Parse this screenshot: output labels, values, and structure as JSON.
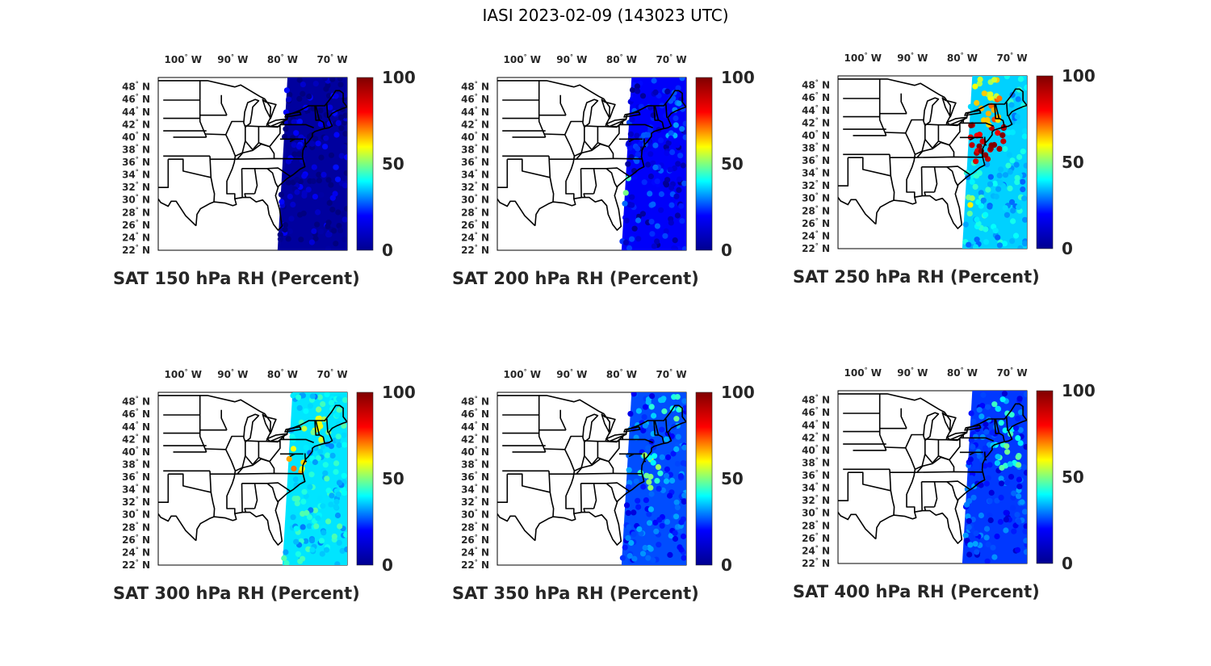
{
  "figure_title": "IASI 2023-02-09 (143023 UTC)",
  "lon_labels": [
    {
      "deg": "100",
      "hemi": "W",
      "value": -100
    },
    {
      "deg": "90",
      "hemi": "W",
      "value": -90
    },
    {
      "deg": "80",
      "hemi": "W",
      "value": -80
    },
    {
      "deg": "70",
      "hemi": "W",
      "value": -70
    }
  ],
  "lat_labels": [
    {
      "deg": "48",
      "hemi": "N",
      "value": 48
    },
    {
      "deg": "46",
      "hemi": "N",
      "value": 46
    },
    {
      "deg": "44",
      "hemi": "N",
      "value": 44
    },
    {
      "deg": "42",
      "hemi": "N",
      "value": 42
    },
    {
      "deg": "40",
      "hemi": "N",
      "value": 40
    },
    {
      "deg": "38",
      "hemi": "N",
      "value": 38
    },
    {
      "deg": "36",
      "hemi": "N",
      "value": 36
    },
    {
      "deg": "34",
      "hemi": "N",
      "value": 34
    },
    {
      "deg": "32",
      "hemi": "N",
      "value": 32
    },
    {
      "deg": "30",
      "hemi": "N",
      "value": 30
    },
    {
      "deg": "28",
      "hemi": "N",
      "value": 28
    },
    {
      "deg": "26",
      "hemi": "N",
      "value": 26
    },
    {
      "deg": "24",
      "hemi": "N",
      "value": 24
    },
    {
      "deg": "22",
      "hemi": "N",
      "value": 22
    }
  ],
  "map_extent": {
    "lon_min": -105,
    "lon_max": -67,
    "lat_min": 22,
    "lat_max": 49.5
  },
  "colorbar": {
    "min": 0,
    "max": 100,
    "ticks": [
      "100",
      "50",
      "0"
    ],
    "colormap": "jet",
    "colors": [
      "#00008f",
      "#0000ff",
      "#00ffff",
      "#ffff00",
      "#ff0000",
      "#800000"
    ]
  },
  "chart_data": [
    {
      "type": "map",
      "title": "SAT 150 hPa RH (Percent)",
      "variable": "Relative Humidity",
      "level_hpa": 150,
      "units": "Percent",
      "swath": {
        "lon_west_north": -79,
        "lon_west_south": -81,
        "lon_east": -67
      },
      "base_rh": 3,
      "features": []
    },
    {
      "type": "map",
      "title": "SAT 200 hPa RH (Percent)",
      "variable": "Relative Humidity",
      "level_hpa": 200,
      "units": "Percent",
      "swath": {
        "lon_west_north": -78,
        "lon_west_south": -80,
        "lon_east": -67
      },
      "base_rh": 12,
      "features": [
        {
          "lon": -79,
          "lat": 32.5,
          "r": 1.4,
          "rh": 45
        },
        {
          "lon": -70,
          "lat": 43,
          "r": 3,
          "rh": 22
        }
      ]
    },
    {
      "type": "map",
      "title": "SAT 250 hPa RH (Percent)",
      "variable": "Relative Humidity",
      "level_hpa": 250,
      "units": "Percent",
      "swath": {
        "lon_west_north": -78,
        "lon_west_south": -80,
        "lon_east": -67
      },
      "base_rh": 33,
      "features": [
        {
          "lon": -75.5,
          "lat": 40,
          "r": 4.5,
          "rh": 97
        },
        {
          "lon": -74,
          "lat": 44.5,
          "r": 3.2,
          "rh": 72
        },
        {
          "lon": -75,
          "lat": 47.5,
          "r": 2.5,
          "rh": 62
        },
        {
          "lon": -78.5,
          "lat": 29,
          "r": 1.5,
          "rh": 55
        }
      ]
    },
    {
      "type": "map",
      "title": "SAT 300 hPa RH (Percent)",
      "variable": "Relative Humidity",
      "level_hpa": 300,
      "units": "Percent",
      "swath": {
        "lon_west_north": -78,
        "lon_west_south": -80,
        "lon_east": -67
      },
      "base_rh": 35,
      "features": [
        {
          "lon": -77,
          "lat": 38.5,
          "r": 2.2,
          "rh": 68
        },
        {
          "lon": -73,
          "lat": 44,
          "r": 3,
          "rh": 55
        },
        {
          "lon": -79,
          "lat": 27,
          "r": 1.5,
          "rh": 25
        }
      ]
    },
    {
      "type": "map",
      "title": "SAT 350 hPa RH (Percent)",
      "variable": "Relative Humidity",
      "level_hpa": 350,
      "units": "Percent",
      "swath": {
        "lon_west_north": -78,
        "lon_west_south": -80,
        "lon_east": -67
      },
      "base_rh": 20,
      "features": [
        {
          "lon": -74,
          "lat": 37,
          "r": 3,
          "rh": 45
        },
        {
          "lon": -71,
          "lat": 47,
          "r": 3,
          "rh": 40
        }
      ]
    },
    {
      "type": "map",
      "title": "SAT 400 hPa RH (Percent)",
      "variable": "Relative Humidity",
      "level_hpa": 400,
      "units": "Percent",
      "swath": {
        "lon_west_north": -78,
        "lon_west_south": -80,
        "lon_east": -67
      },
      "base_rh": 18,
      "features": [
        {
          "lon": -71,
          "lat": 40,
          "r": 3.5,
          "rh": 40
        },
        {
          "lon": -72,
          "lat": 46.5,
          "r": 2.5,
          "rh": 35
        }
      ]
    }
  ]
}
